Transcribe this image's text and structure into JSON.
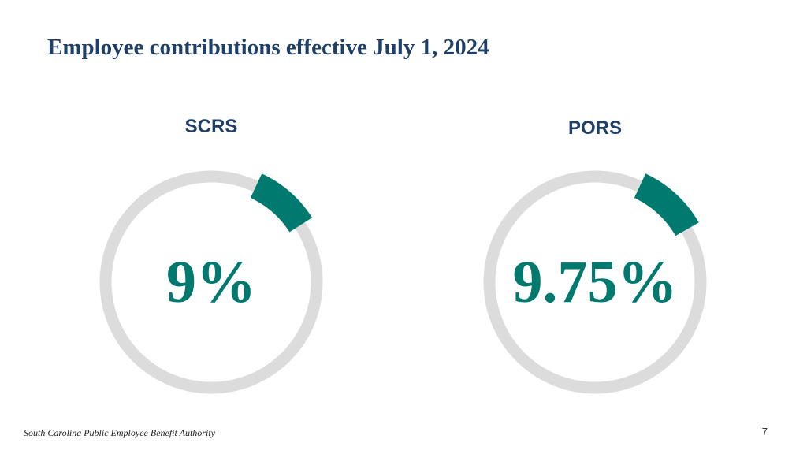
{
  "title": "Employee contributions effective July 1, 2024",
  "footer": "South Carolina Public Employee Benefit Authority",
  "page_number": "7",
  "colors": {
    "accent": "#00796f",
    "ring": "#dcdcdc",
    "title": "#1f3f66"
  },
  "chart_data": [
    {
      "type": "pie",
      "title": "SCRS",
      "value_label": "9%",
      "values": [
        9,
        91
      ]
    },
    {
      "type": "pie",
      "title": "PORS",
      "value_label": "9.75%",
      "values": [
        9.75,
        90.25
      ]
    }
  ]
}
